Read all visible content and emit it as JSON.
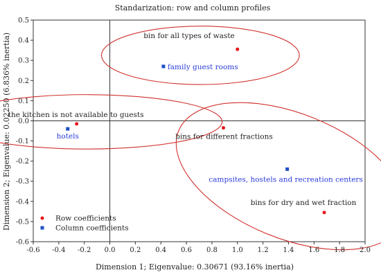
{
  "chart_data": {
    "type": "scatter",
    "title": "Standarization: row and column profiles",
    "xlabel": "Dimension 1; Eigenvalue: 0.30671 (93.16% inertia)",
    "ylabel": "Dimension 2; Eigenvalue: 0.02250 (6.836% inertia)",
    "xlim": [
      -0.6,
      2.0
    ],
    "ylim": [
      -0.6,
      0.5
    ],
    "xticks": [
      "-0.6",
      "-0.4",
      "-0.2",
      "0.0",
      "0.2",
      "0.4",
      "0.6",
      "0.8",
      "1.0",
      "1.2",
      "1.4",
      "1.6",
      "1.8",
      "2.0"
    ],
    "yticks": [
      "0.5",
      "0.4",
      "0.3",
      "0.2",
      "0.1",
      "0.0",
      "-0.1",
      "-0.2",
      "-0.3",
      "-0.4",
      "-0.5",
      "-0.6"
    ],
    "grid": false,
    "legend_position": "bottom-left",
    "series": [
      {
        "name": "Row coefficients",
        "marker": "circle",
        "color": "#e8131a",
        "label_color": "#222222",
        "points": [
          {
            "label": "bin for all types of waste",
            "x": 1.0,
            "y": 0.355
          },
          {
            "label": "the kitchen is not available to guests",
            "x": -0.26,
            "y": -0.015
          },
          {
            "label": "bins for different fractions",
            "x": 0.89,
            "y": -0.035
          },
          {
            "label": "bins for dry and wet fraction",
            "x": 1.68,
            "y": -0.455
          }
        ]
      },
      {
        "name": "Column coefficients",
        "marker": "square",
        "color": "#1f4fc4",
        "label_color": "#2a3bd8",
        "points": [
          {
            "label": "family guest rooms",
            "x": 0.42,
            "y": 0.27
          },
          {
            "label": "hotels",
            "x": -0.33,
            "y": -0.04
          },
          {
            "label": "campsites, hostels and recreation centers",
            "x": 1.39,
            "y": -0.24
          }
        ]
      }
    ],
    "ellipse_color": "#d0312d"
  }
}
